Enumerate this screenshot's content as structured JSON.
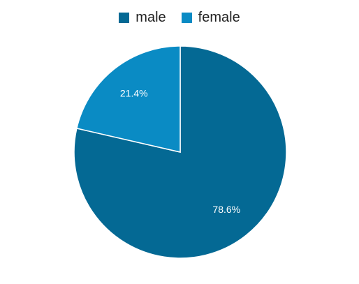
{
  "chart_data": {
    "type": "pie",
    "categories": [
      "male",
      "female"
    ],
    "values": [
      78.6,
      21.4
    ],
    "labels": [
      "78.6%",
      "21.4%"
    ],
    "colors": [
      "#046994",
      "#0a8bc4"
    ],
    "legend_position": "top",
    "start_angle_deg": 0,
    "direction": "clockwise"
  }
}
